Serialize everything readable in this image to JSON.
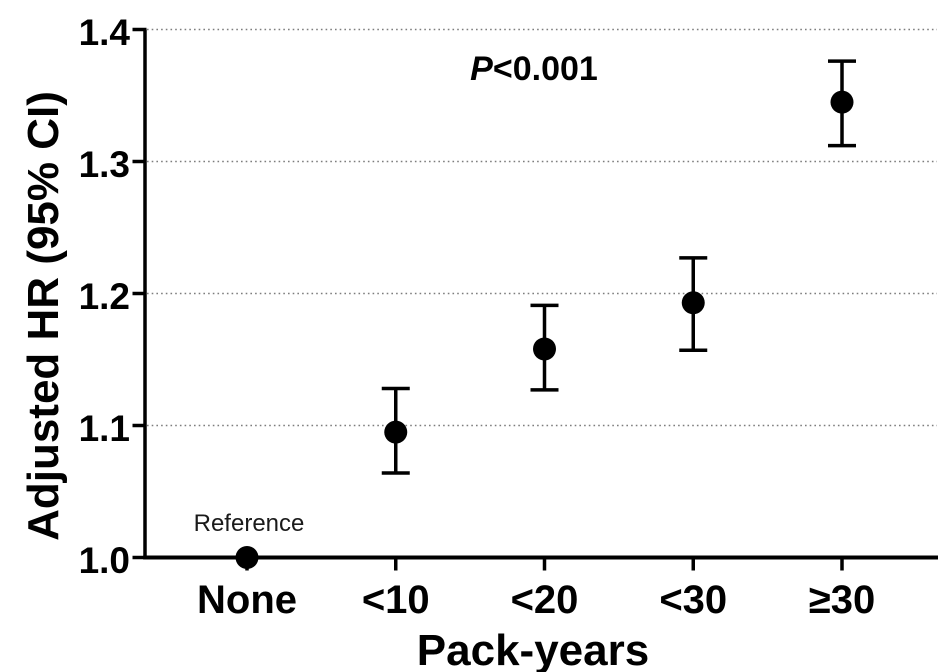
{
  "colors": {
    "foreground": "#000000",
    "background": "#ffffff",
    "gridline": "#7d7d7d"
  },
  "annotations": {
    "p_italic": "P",
    "p_rest": "<0.001",
    "reference": "Reference"
  },
  "chart_data": {
    "type": "scatter",
    "subtype": "point-estimates-with-95ci-error-bars",
    "title": "",
    "xlabel": "Pack-years",
    "ylabel": "Adjusted HR (95% CI)",
    "categories": [
      "None",
      "<10",
      "<20",
      "<30",
      "≥30"
    ],
    "series": [
      {
        "name": "Adjusted HR",
        "values": [
          1.0,
          1.095,
          1.158,
          1.193,
          1.345
        ],
        "ci_low": [
          null,
          1.064,
          1.127,
          1.157,
          1.312
        ],
        "ci_high": [
          null,
          1.128,
          1.191,
          1.227,
          1.376
        ]
      }
    ],
    "reference_category": "None",
    "ylim": [
      1.0,
      1.4
    ],
    "yticks": [
      1.0,
      1.1,
      1.2,
      1.3,
      1.4
    ],
    "ytick_labels": [
      "1.0",
      "1.1",
      "1.2",
      "1.3",
      "1.4"
    ],
    "grid": "horizontal dotted gridlines at 1.1, 1.2, 1.3, 1.4",
    "legend": "none",
    "annotation_text": "P<0.001"
  }
}
